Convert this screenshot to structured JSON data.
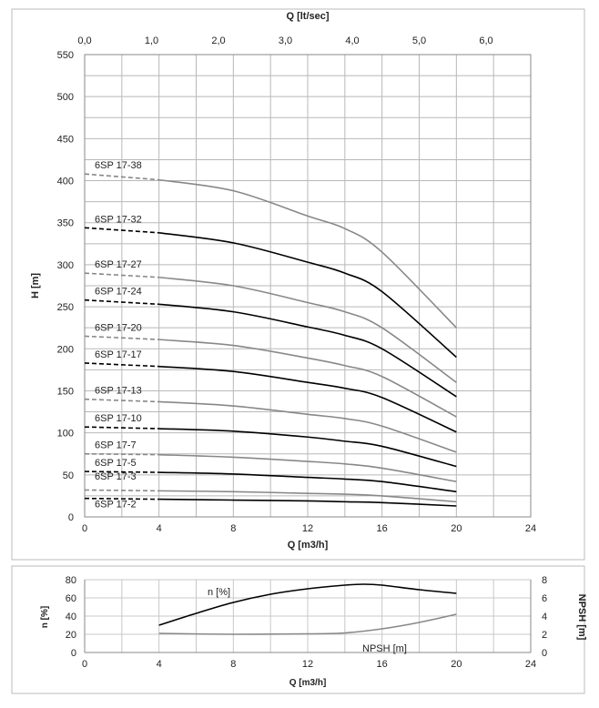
{
  "chart_data": [
    {
      "type": "line",
      "xlabel": "Q [m3/h]",
      "x2label": "Q [lt/sec]",
      "ylabel": "H [m]",
      "xlim": [
        0,
        24
      ],
      "x2lim": [
        0,
        6.666
      ],
      "ylim": [
        0,
        550
      ],
      "xticks": [
        "0",
        "4",
        "8",
        "12",
        "16",
        "20",
        "24"
      ],
      "x2ticks": [
        "0,0",
        "1,0",
        "2,0",
        "3,0",
        "4,0",
        "5,0",
        "6,0"
      ],
      "yticks": [
        "0",
        "50",
        "100",
        "150",
        "200",
        "250",
        "300",
        "350",
        "400",
        "450",
        "500",
        "550"
      ],
      "grid": true,
      "x": [
        0,
        4,
        8,
        12,
        14,
        16,
        20
      ],
      "note_dashed_range": [
        0,
        4
      ],
      "series": [
        {
          "name": "6SP 17-38",
          "color": "#888888",
          "values": [
            408,
            401,
            388,
            358,
            343,
            315,
            225
          ]
        },
        {
          "name": "6SP 17-32",
          "color": "#000000",
          "values": [
            344,
            338,
            326,
            303,
            290,
            268,
            190
          ]
        },
        {
          "name": "6SP 17-27",
          "color": "#888888",
          "values": [
            290,
            285,
            275,
            255,
            244,
            225,
            160
          ]
        },
        {
          "name": "6SP 17-24",
          "color": "#000000",
          "values": [
            258,
            253,
            244,
            226,
            216,
            200,
            143
          ]
        },
        {
          "name": "6SP 17-20",
          "color": "#888888",
          "values": [
            215,
            211,
            204,
            189,
            180,
            167,
            119
          ]
        },
        {
          "name": "6SP 17-17",
          "color": "#000000",
          "values": [
            183,
            179,
            173,
            160,
            153,
            142,
            101
          ]
        },
        {
          "name": "6SP 17-13",
          "color": "#888888",
          "values": [
            140,
            137,
            132,
            122,
            117,
            108,
            77
          ]
        },
        {
          "name": "6SP 17-10",
          "color": "#000000",
          "values": [
            107,
            105,
            102,
            95,
            90,
            84,
            60
          ]
        },
        {
          "name": "6SP 17-7",
          "color": "#888888",
          "values": [
            75,
            74,
            71,
            66,
            63,
            58,
            42
          ]
        },
        {
          "name": "6SP 17-5",
          "color": "#000000",
          "values": [
            54,
            53,
            51,
            47,
            45,
            42,
            30
          ]
        },
        {
          "name": "6SP 17-3",
          "color": "#888888",
          "values": [
            32,
            31,
            30,
            28,
            27,
            25,
            18
          ]
        },
        {
          "name": "6SP 17-2",
          "color": "#000000",
          "values": [
            22,
            21,
            20,
            19,
            18,
            17,
            13
          ]
        }
      ]
    },
    {
      "type": "line",
      "xlabel": "Q [m3/h]",
      "ylabel": "n [%]",
      "y2label": "NPSH [m]",
      "xlim": [
        0,
        24
      ],
      "ylim": [
        0,
        80
      ],
      "y2lim": [
        0,
        8
      ],
      "xticks": [
        "0",
        "4",
        "8",
        "12",
        "16",
        "20",
        "24"
      ],
      "yticks": [
        "0",
        "20",
        "40",
        "60",
        "80"
      ],
      "y2ticks": [
        "0",
        "2",
        "4",
        "6",
        "8"
      ],
      "grid": true,
      "series": [
        {
          "name": "n [%]",
          "axis": "left",
          "color": "#000000",
          "x": [
            4,
            6,
            8,
            10,
            12,
            14,
            15,
            16,
            18,
            20
          ],
          "values": [
            30,
            43,
            55,
            64,
            70,
            74,
            75,
            74,
            69,
            65
          ]
        },
        {
          "name": "NPSH [m]",
          "axis": "right",
          "color": "#888888",
          "x": [
            4,
            8,
            12,
            14,
            16,
            18,
            20
          ],
          "values": [
            2.1,
            2.0,
            2.05,
            2.15,
            2.6,
            3.3,
            4.2
          ]
        }
      ]
    }
  ]
}
